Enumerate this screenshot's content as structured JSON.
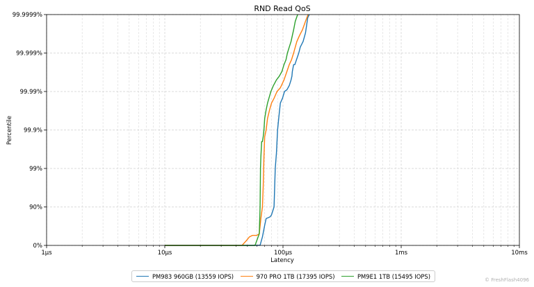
{
  "chart_data": {
    "type": "line",
    "title": "RND Read QoS",
    "xlabel": "Latency",
    "ylabel": "Percentile",
    "x_scale": "log",
    "x_unit": "µs",
    "xlim": [
      1,
      10000
    ],
    "x_ticks": [
      {
        "value": 1,
        "label": "1µs"
      },
      {
        "value": 10,
        "label": "10µs"
      },
      {
        "value": 100,
        "label": "100µs"
      },
      {
        "value": 1000,
        "label": "1ms"
      },
      {
        "value": 10000,
        "label": "10ms"
      }
    ],
    "y_scale": "log-nines",
    "y_ticks": [
      {
        "value": 0,
        "label": "0%"
      },
      {
        "value": 90,
        "label": "90%"
      },
      {
        "value": 99,
        "label": "99%"
      },
      {
        "value": 99.9,
        "label": "99.9%"
      },
      {
        "value": 99.99,
        "label": "99.99%"
      },
      {
        "value": 99.999,
        "label": "99.999%"
      },
      {
        "value": 99.9999,
        "label": "99.9999%"
      }
    ],
    "grid": true,
    "legend_position": "bottom",
    "series": [
      {
        "name": "PM983 960GB (13559 IOPS)",
        "color": "#1f77b4",
        "points": [
          [
            10,
            0
          ],
          [
            55,
            0
          ],
          [
            64,
            1
          ],
          [
            67,
            40
          ],
          [
            70,
            70
          ],
          [
            72,
            80
          ],
          [
            75,
            81
          ],
          [
            78,
            82
          ],
          [
            80,
            84
          ],
          [
            84,
            90
          ],
          [
            86,
            99
          ],
          [
            88,
            99.6
          ],
          [
            90,
            99.9
          ],
          [
            92,
            99.95
          ],
          [
            95,
            99.98
          ],
          [
            99,
            99.985
          ],
          [
            103,
            99.99
          ],
          [
            108,
            99.991
          ],
          [
            113,
            99.993
          ],
          [
            117,
            99.995
          ],
          [
            119,
            99.996
          ],
          [
            120,
            99.997
          ],
          [
            123,
            99.998
          ],
          [
            126,
            99.998
          ],
          [
            130,
            99.9985
          ],
          [
            136,
            99.999
          ],
          [
            140,
            99.9993
          ],
          [
            148,
            99.9995
          ],
          [
            155,
            99.9997
          ],
          [
            162,
            99.99988
          ],
          [
            167,
            99.9999
          ]
        ]
      },
      {
        "name": "970 PRO 1TB (17395 IOPS)",
        "color": "#ff7f0e",
        "points": [
          [
            10,
            0
          ],
          [
            45,
            0
          ],
          [
            49,
            25
          ],
          [
            52,
            40
          ],
          [
            55,
            45
          ],
          [
            60,
            45
          ],
          [
            63,
            50
          ],
          [
            65,
            80
          ],
          [
            67,
            90
          ],
          [
            68,
            97
          ],
          [
            69,
            99.5
          ],
          [
            70,
            99.85
          ],
          [
            72,
            99.9
          ],
          [
            74,
            99.95
          ],
          [
            77,
            99.97
          ],
          [
            80,
            99.98
          ],
          [
            84,
            99.985
          ],
          [
            89,
            99.99
          ],
          [
            95,
            99.992
          ],
          [
            102,
            99.995
          ],
          [
            108,
            99.997
          ],
          [
            113,
            99.998
          ],
          [
            118,
            99.9985
          ],
          [
            123,
            99.999
          ],
          [
            127,
            99.9993
          ],
          [
            131,
            99.9995
          ],
          [
            138,
            99.99965
          ],
          [
            146,
            99.99975
          ],
          [
            155,
            99.99985
          ],
          [
            163,
            99.9999
          ]
        ]
      },
      {
        "name": "PM9E1 1TB (15495 IOPS)",
        "color": "#2ca02c",
        "points": [
          [
            10,
            0
          ],
          [
            58,
            0
          ],
          [
            63,
            50
          ],
          [
            64,
            90
          ],
          [
            64.5,
            99
          ],
          [
            65,
            99.5
          ],
          [
            66,
            99.8
          ],
          [
            67,
            99.8
          ],
          [
            68,
            99.85
          ],
          [
            69,
            99.9
          ],
          [
            70,
            99.95
          ],
          [
            72,
            99.97
          ],
          [
            74,
            99.98
          ],
          [
            76,
            99.985
          ],
          [
            79,
            99.99
          ],
          [
            83,
            99.993
          ],
          [
            88,
            99.995
          ],
          [
            93,
            99.996
          ],
          [
            98,
            99.997
          ],
          [
            102,
            99.998
          ],
          [
            106,
            99.9985
          ],
          [
            109,
            99.999
          ],
          [
            113,
            99.9993
          ],
          [
            117,
            99.9995
          ],
          [
            120,
            99.99965
          ],
          [
            123,
            99.99975
          ],
          [
            127,
            99.99985
          ],
          [
            133,
            99.9999
          ]
        ]
      }
    ]
  },
  "watermark": "© FreshFlash4096"
}
